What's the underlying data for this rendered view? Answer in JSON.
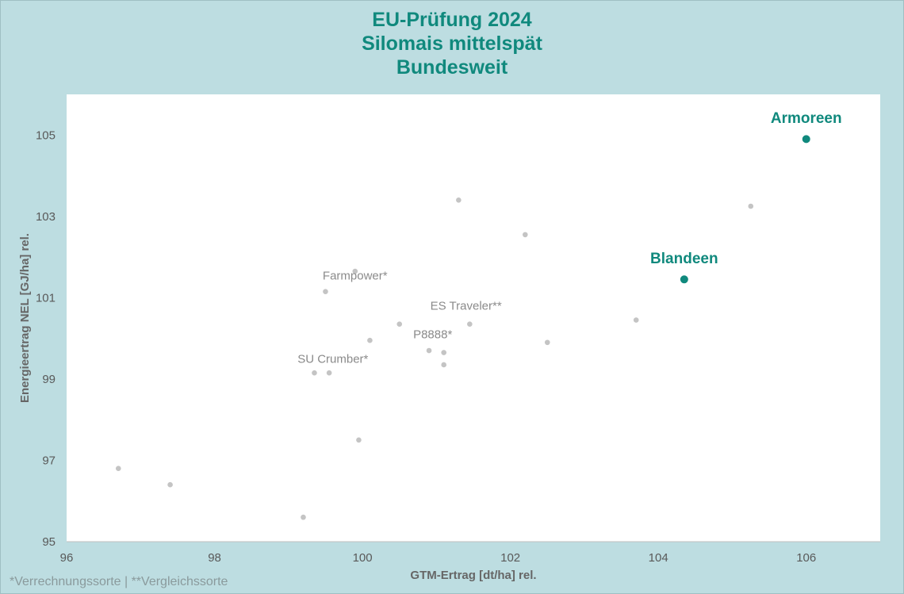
{
  "chart_data": {
    "type": "scatter",
    "title_lines": [
      "EU-Prüfung 2024",
      "Silomais mittelspät",
      "Bundesweit"
    ],
    "xlabel": "GTM-Ertrag [dt/ha] rel.",
    "ylabel": "Energieertrag NEL [GJ/ha] rel.",
    "xlim": [
      96,
      107
    ],
    "ylim": [
      95,
      106
    ],
    "x_ticks": [
      96,
      98,
      100,
      102,
      104,
      106
    ],
    "y_ticks": [
      95,
      97,
      99,
      101,
      103,
      105
    ],
    "grid": false,
    "series": [
      {
        "name": "",
        "color": "#c4c4c4",
        "points": [
          {
            "x": 96.7,
            "y": 96.8
          },
          {
            "x": 97.4,
            "y": 96.4
          },
          {
            "x": 99.2,
            "y": 95.6
          },
          {
            "x": 99.35,
            "y": 99.15
          },
          {
            "x": 99.55,
            "y": 99.15
          },
          {
            "x": 99.5,
            "y": 101.15
          },
          {
            "x": 99.9,
            "y": 101.65
          },
          {
            "x": 99.95,
            "y": 97.5
          },
          {
            "x": 100.1,
            "y": 99.95
          },
          {
            "x": 100.5,
            "y": 100.35
          },
          {
            "x": 100.9,
            "y": 99.7
          },
          {
            "x": 101.1,
            "y": 99.65
          },
          {
            "x": 101.1,
            "y": 99.35
          },
          {
            "x": 101.3,
            "y": 103.4
          },
          {
            "x": 101.45,
            "y": 100.35
          },
          {
            "x": 102.2,
            "y": 102.55
          },
          {
            "x": 102.5,
            "y": 99.9
          },
          {
            "x": 103.7,
            "y": 100.45
          },
          {
            "x": 105.25,
            "y": 103.25
          }
        ]
      },
      {
        "name": "",
        "color": "#10897d",
        "points": [
          {
            "x": 104.35,
            "y": 101.45
          },
          {
            "x": 106.0,
            "y": 104.9
          }
        ]
      }
    ],
    "annotations": [
      {
        "text": "Farmpower*",
        "x": 99.9,
        "y": 101.45,
        "color": "#8a8a8a",
        "bold": false
      },
      {
        "text": "ES Traveler**",
        "x": 101.4,
        "y": 100.7,
        "color": "#8a8a8a",
        "bold": false
      },
      {
        "text": "P8888*",
        "x": 100.95,
        "y": 100.0,
        "color": "#8a8a8a",
        "bold": false
      },
      {
        "text": "SU Crumber*",
        "x": 99.6,
        "y": 99.4,
        "color": "#8a8a8a",
        "bold": false
      },
      {
        "text": "Blandeen",
        "x": 104.35,
        "y": 101.85,
        "color": "#10897d",
        "bold": true
      },
      {
        "text": "Armoreen",
        "x": 106.0,
        "y": 105.3,
        "color": "#10897d",
        "bold": true
      }
    ]
  },
  "footnote": "*Verrechnungssorte | **Vergleichssorte"
}
